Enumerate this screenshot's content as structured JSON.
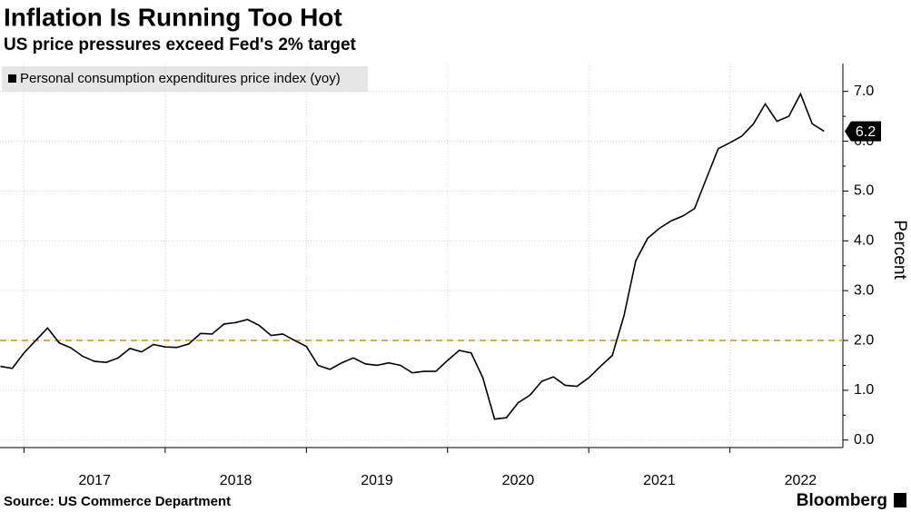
{
  "chart_data": {
    "type": "line",
    "title": "Inflation Is Running Too Hot",
    "subtitle": "US price pressures exceed Fed's 2% target",
    "y_label": "Percent",
    "source": "Source: US Commerce Department",
    "brand": "Bloomberg",
    "x": [
      2016.833,
      2016.917,
      2017,
      2017.083,
      2017.167,
      2017.25,
      2017.333,
      2017.417,
      2017.5,
      2017.583,
      2017.667,
      2017.75,
      2017.833,
      2017.917,
      2018,
      2018.083,
      2018.167,
      2018.25,
      2018.333,
      2018.417,
      2018.5,
      2018.583,
      2018.667,
      2018.75,
      2018.833,
      2018.917,
      2019,
      2019.083,
      2019.167,
      2019.25,
      2019.333,
      2019.417,
      2019.5,
      2019.583,
      2019.667,
      2019.75,
      2019.833,
      2019.917,
      2020,
      2020.083,
      2020.167,
      2020.25,
      2020.333,
      2020.417,
      2020.5,
      2020.583,
      2020.667,
      2020.75,
      2020.833,
      2020.917,
      2021,
      2021.083,
      2021.167,
      2021.25,
      2021.333,
      2021.417,
      2021.5,
      2021.583,
      2021.667,
      2021.75,
      2021.833,
      2021.917,
      2022,
      2022.083,
      2022.167,
      2022.25,
      2022.333,
      2022.417,
      2022.5,
      2022.583,
      2022.667
    ],
    "series": [
      {
        "name": "Personal consumption expenditures price index (yoy)",
        "color": "#000000",
        "values": [
          1.48,
          1.44,
          1.75,
          2.0,
          2.25,
          1.95,
          1.85,
          1.68,
          1.58,
          1.56,
          1.65,
          1.84,
          1.77,
          1.92,
          1.87,
          1.86,
          1.93,
          2.14,
          2.13,
          2.33,
          2.36,
          2.42,
          2.3,
          2.1,
          2.13,
          2.0,
          1.88,
          1.5,
          1.42,
          1.55,
          1.65,
          1.53,
          1.5,
          1.55,
          1.5,
          1.35,
          1.38,
          1.38,
          1.6,
          1.8,
          1.75,
          1.25,
          0.42,
          0.45,
          0.75,
          0.9,
          1.18,
          1.27,
          1.1,
          1.08,
          1.25,
          1.48,
          1.7,
          2.5,
          3.6,
          4.05,
          4.25,
          4.4,
          4.5,
          4.65,
          5.25,
          5.85,
          5.97,
          6.1,
          6.35,
          6.75,
          6.4,
          6.5,
          6.95,
          6.35,
          6.2
        ]
      }
    ],
    "reference_line": {
      "value": 2,
      "color": "#f5a623"
    },
    "xlim": [
      2016.83,
      2022.8
    ],
    "xticks": [
      {
        "value": 2017,
        "label": "2017"
      },
      {
        "value": 2018,
        "label": "2018"
      },
      {
        "value": 2019,
        "label": "2019"
      },
      {
        "value": 2020,
        "label": "2020"
      },
      {
        "value": 2021,
        "label": "2021"
      },
      {
        "value": 2022,
        "label": "2022"
      }
    ],
    "ylim": [
      -0.15,
      7.56
    ],
    "yticks": [
      {
        "value": 0,
        "label": "0.0"
      },
      {
        "value": 1,
        "label": "1.0"
      },
      {
        "value": 2,
        "label": "2.0"
      },
      {
        "value": 3,
        "label": "3.0"
      },
      {
        "value": 4,
        "label": "4.0"
      },
      {
        "value": 5,
        "label": "5.0"
      },
      {
        "value": 6,
        "label": "6.0"
      },
      {
        "value": 7,
        "label": "7.0"
      }
    ],
    "grid": true,
    "end_label": true
  }
}
